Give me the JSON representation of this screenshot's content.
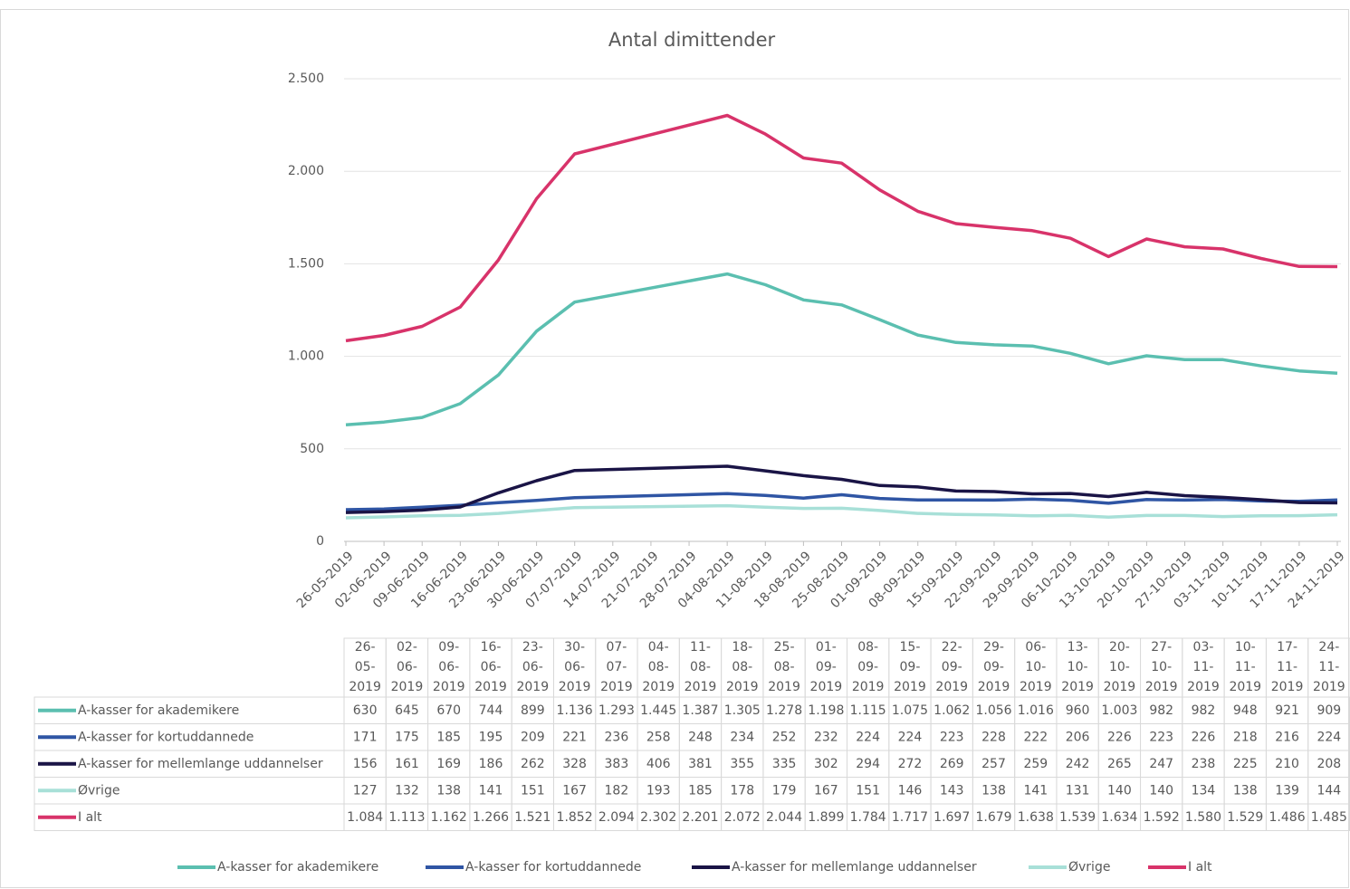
{
  "chart_data": {
    "type": "line",
    "title": "Antal dimittender",
    "x": [
      "26-05-2019",
      "02-06-2019",
      "09-06-2019",
      "16-06-2019",
      "23-06-2019",
      "30-06-2019",
      "07-07-2019",
      "04-08-2019",
      "11-08-2019",
      "18-08-2019",
      "25-08-2019",
      "01-09-2019",
      "08-09-2019",
      "15-09-2019",
      "22-09-2019",
      "29-09-2019",
      "06-10-2019",
      "13-10-2019",
      "20-10-2019",
      "27-10-2019",
      "03-11-2019",
      "10-11-2019",
      "17-11-2019",
      "24-11-2019"
    ],
    "xlim": [
      "26-05-2019",
      "24-11-2019"
    ],
    "xticks": [
      "26-05-2019",
      "02-06-2019",
      "09-06-2019",
      "16-06-2019",
      "23-06-2019",
      "30-06-2019",
      "07-07-2019",
      "14-07-2019",
      "21-07-2019",
      "28-07-2019",
      "04-08-2019",
      "11-08-2019",
      "18-08-2019",
      "25-08-2019",
      "01-09-2019",
      "08-09-2019",
      "15-09-2019",
      "22-09-2019",
      "29-09-2019",
      "06-10-2019",
      "13-10-2019",
      "20-10-2019",
      "27-10-2019",
      "03-11-2019",
      "10-11-2019",
      "17-11-2019",
      "24-11-2019"
    ],
    "ylim": [
      0,
      2500
    ],
    "yticks": [
      0,
      500,
      {
        "value": 1000,
        "label": "1.000"
      },
      {
        "value": 1500,
        "label": "1.500"
      },
      {
        "value": 2000,
        "label": "2.000"
      },
      {
        "value": 2500,
        "label": "2.500"
      }
    ],
    "grid": true,
    "series": [
      {
        "name": "A-kasser for akademikere",
        "color": "#5bbfb0",
        "values": [
          630,
          645,
          670,
          744,
          899,
          1136,
          1293,
          1445,
          1387,
          1305,
          1278,
          1198,
          1115,
          1075,
          1062,
          1056,
          1016,
          960,
          1003,
          982,
          982,
          948,
          921,
          909
        ],
        "value_labels": [
          "630",
          "645",
          "670",
          "744",
          "899",
          "1.136",
          "1.293",
          "1.445",
          "1.387",
          "1.305",
          "1.278",
          "1.198",
          "1.115",
          "1.075",
          "1.062",
          "1.056",
          "1.016",
          "960",
          "1.003",
          "982",
          "982",
          "948",
          "921",
          "909"
        ]
      },
      {
        "name": "A-kasser for kortuddannede",
        "color": "#2f55a4",
        "values": [
          171,
          175,
          185,
          195,
          209,
          221,
          236,
          258,
          248,
          234,
          252,
          232,
          224,
          224,
          223,
          228,
          222,
          206,
          226,
          223,
          226,
          218,
          216,
          224
        ]
      },
      {
        "name": "A-kasser for mellemlange uddannelser",
        "color": "#1a1446",
        "values": [
          156,
          161,
          169,
          186,
          262,
          328,
          383,
          406,
          381,
          355,
          335,
          302,
          294,
          272,
          269,
          257,
          259,
          242,
          265,
          247,
          238,
          225,
          210,
          208
        ]
      },
      {
        "name": "Øvrige",
        "color": "#a8e0d8",
        "values": [
          127,
          132,
          138,
          141,
          151,
          167,
          182,
          193,
          185,
          178,
          179,
          167,
          151,
          146,
          143,
          138,
          141,
          131,
          140,
          140,
          134,
          138,
          139,
          144
        ]
      },
      {
        "name": "I alt",
        "color": "#d8336a",
        "values": [
          1084,
          1113,
          1162,
          1266,
          1521,
          1852,
          2094,
          2302,
          2201,
          2072,
          2044,
          1899,
          1784,
          1717,
          1697,
          1679,
          1638,
          1539,
          1634,
          1592,
          1580,
          1529,
          1486,
          1485
        ],
        "value_labels": [
          "1.084",
          "1.113",
          "1.162",
          "1.266",
          "1.521",
          "1.852",
          "2.094",
          "2.302",
          "2.201",
          "2.072",
          "2.044",
          "1.899",
          "1.784",
          "1.717",
          "1.697",
          "1.679",
          "1.638",
          "1.539",
          "1.634",
          "1.592",
          "1.580",
          "1.529",
          "1.486",
          "1.485"
        ]
      }
    ]
  }
}
